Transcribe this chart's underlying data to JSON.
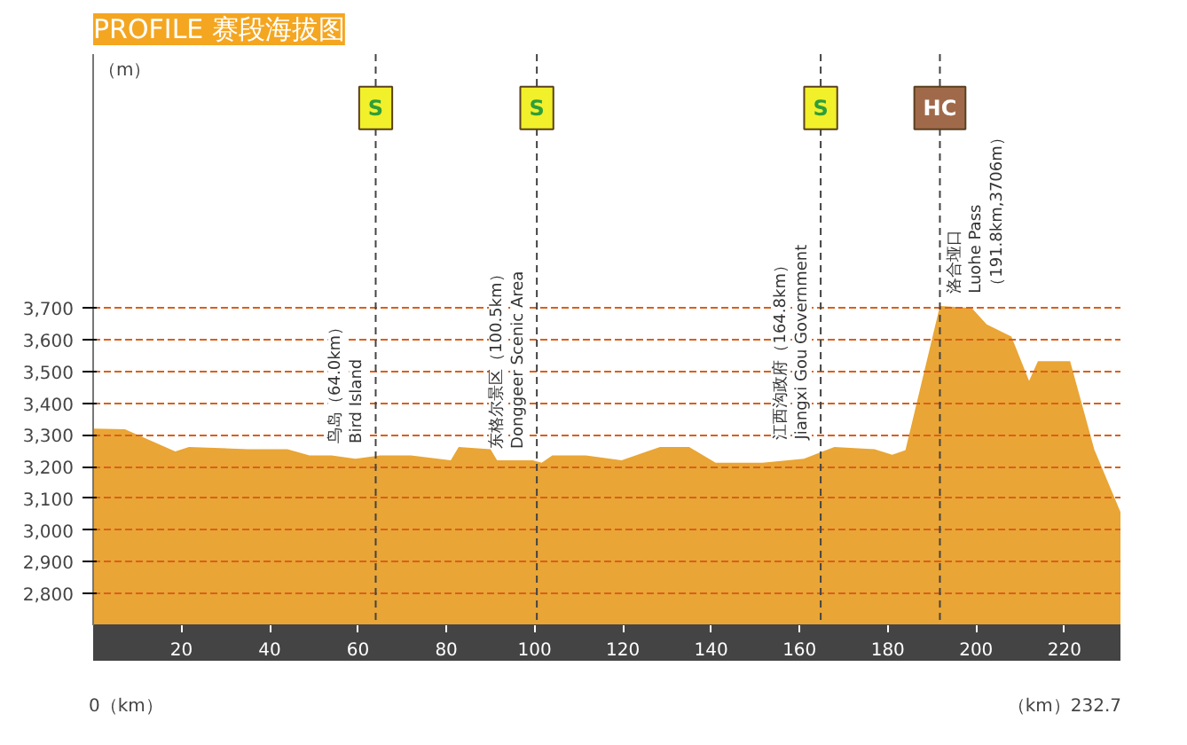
{
  "chart_data": {
    "type": "area",
    "title": "PROFILE 赛段海拔图",
    "ylabel": "（m）",
    "x": [
      0,
      7.2,
      18.6,
      21.7,
      35,
      44,
      49,
      54,
      59.4,
      65,
      72,
      81,
      82.8,
      90,
      91.5,
      99.6,
      101.6,
      104,
      111.6,
      119.7,
      128.4,
      135,
      141,
      151.6,
      161,
      167.9,
      177,
      181,
      184,
      191.8,
      199,
      202.4,
      208,
      212,
      214,
      221.3,
      226.8,
      232.7
    ],
    "series": [
      {
        "color": "#e9a535",
        "values": [
          3320,
          3318,
          3248,
          3262,
          3255,
          3255,
          3235,
          3235,
          3225,
          3235,
          3235,
          3220,
          3262,
          3255,
          3220,
          3220,
          3212,
          3235,
          3235,
          3220,
          3262,
          3262,
          3212,
          3212,
          3225,
          3262,
          3255,
          3237,
          3252,
          3706,
          3700,
          3648,
          3610,
          3470,
          3532,
          3532,
          3253,
          3057
        ]
      }
    ],
    "xlim": [
      0,
      232.7
    ],
    "ylim": [
      2700,
      4500
    ],
    "xticks": [
      20,
      40,
      60,
      80,
      100,
      120,
      140,
      160,
      180,
      200,
      220
    ],
    "yticks": [
      {
        "value": 2800,
        "label": "2,800"
      },
      {
        "value": 2900,
        "label": "2,900"
      },
      {
        "value": 3000,
        "label": "3,000"
      },
      {
        "value": 3100,
        "label": "3,100"
      },
      {
        "value": 3200,
        "label": "3,200"
      },
      {
        "value": 3300,
        "label": "3,300"
      },
      {
        "value": 3400,
        "label": "3,400"
      },
      {
        "value": 3500,
        "label": "3,500"
      },
      {
        "value": 3600,
        "label": "3,600"
      },
      {
        "value": 3700,
        "label": "3,700"
      }
    ],
    "grid": "y",
    "ref_lines": [
      {
        "axis": "x",
        "value": 64.0,
        "label": "鸟岛（64.0km）\nBird Island",
        "color": "#444444",
        "line_style": "dashed"
      },
      {
        "axis": "x",
        "value": 100.5,
        "label": "东格尔景区（100.5km）\nDonggeer Scenic Area",
        "color": "#444444",
        "line_style": "dashed"
      },
      {
        "axis": "x",
        "value": 164.8,
        "label": "江西沟政府（164.8km）\nJiangxi Gou Government",
        "color": "#444444",
        "line_style": "dashed"
      },
      {
        "axis": "x",
        "value": 191.8,
        "label": "洛合垭口\nLuohe Pass\n（191.8km,3706m）",
        "color": "#444444",
        "line_style": "dashed"
      }
    ],
    "annotations": [
      {
        "text": "S",
        "x": 64.0,
        "y": 4330
      },
      {
        "text": "S",
        "x": 100.5,
        "y": 4330
      },
      {
        "text": "S",
        "x": 164.8,
        "y": 4330
      },
      {
        "text": "HC",
        "x": 191.8,
        "y": 4330
      },
      "0（km）",
      "（km）232.7"
    ]
  }
}
